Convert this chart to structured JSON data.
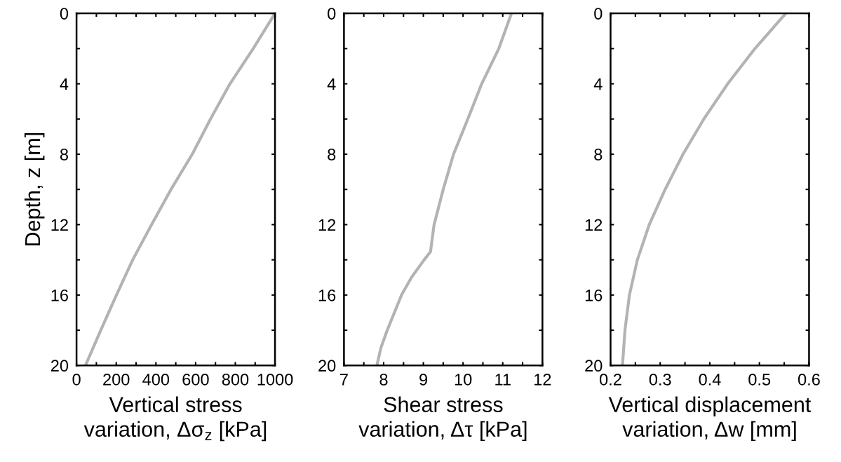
{
  "chart_data": [
    {
      "type": "line",
      "xlabel": "Vertical stress\nvariation, Δσ$_{z}$ [kPa]",
      "ylabel": "Depth, z [m]",
      "xlim": [
        0,
        1000
      ],
      "ylim": [
        20,
        0
      ],
      "xticks": [
        0,
        {
          "value": 100,
          "label": null
        },
        200,
        {
          "value": 300,
          "label": null
        },
        400,
        {
          "value": 500,
          "label": null
        },
        600,
        {
          "value": 700,
          "label": null
        },
        800,
        {
          "value": 900,
          "label": null
        },
        1000
      ],
      "yticks": [
        0,
        {
          "value": 2,
          "label": null
        },
        4,
        {
          "value": 6,
          "label": null
        },
        8,
        {
          "value": 10,
          "label": null
        },
        12,
        {
          "value": 14,
          "label": null
        },
        16,
        {
          "value": 18,
          "label": null
        },
        20
      ],
      "grid": false,
      "marker": "none",
      "line_style": "solid",
      "series": [
        {
          "color": "#b3b3b3",
          "x": [
            1000,
            890,
            773,
            675,
            583,
            476,
            378,
            283,
            201,
            122,
            45
          ],
          "values": [
            0,
            2,
            4,
            6,
            8,
            10,
            12,
            14,
            16,
            18,
            20
          ]
        }
      ]
    },
    {
      "type": "line",
      "xlabel": "Shear stress\nvariation, Δτ [kPa]",
      "xlim": [
        7,
        12
      ],
      "ylim": [
        20,
        0
      ],
      "xticks": [
        7,
        {
          "value": 7.5,
          "label": null
        },
        8,
        {
          "value": 8.5,
          "label": null
        },
        9,
        {
          "value": 9.5,
          "label": null
        },
        10,
        {
          "value": 10.5,
          "label": null
        },
        11,
        {
          "value": 11.5,
          "label": null
        },
        12
      ],
      "yticks": [
        0,
        {
          "value": 2,
          "label": null
        },
        4,
        {
          "value": 6,
          "label": null
        },
        8,
        {
          "value": 10,
          "label": null
        },
        12,
        {
          "value": 14,
          "label": null
        },
        16,
        {
          "value": 18,
          "label": null
        },
        20
      ],
      "grid": false,
      "marker": "none",
      "line_style": "solid",
      "series": [
        {
          "color": "#b3b3b3",
          "x": [
            11.22,
            10.9,
            10.47,
            10.12,
            9.76,
            9.5,
            9.27,
            9.18,
            9.02,
            8.7,
            8.45,
            8.09,
            7.93,
            7.83
          ],
          "values": [
            0,
            2,
            4,
            6,
            8,
            10,
            12,
            13.54,
            14,
            15,
            16,
            18,
            19,
            20
          ]
        }
      ]
    },
    {
      "type": "line",
      "xlabel": "Vertical displacement\nvariation, Δw [mm]",
      "xlim": [
        0.2,
        0.6
      ],
      "ylim": [
        20,
        0
      ],
      "xticks": [
        0.2,
        {
          "value": 0.25,
          "label": null
        },
        0.3,
        {
          "value": 0.35,
          "label": null
        },
        0.4,
        {
          "value": 0.45,
          "label": null
        },
        0.5,
        {
          "value": 0.55,
          "label": null
        },
        0.6
      ],
      "yticks": [
        0,
        {
          "value": 2,
          "label": null
        },
        4,
        {
          "value": 6,
          "label": null
        },
        8,
        {
          "value": 10,
          "label": null
        },
        12,
        {
          "value": 14,
          "label": null
        },
        16,
        {
          "value": 18,
          "label": null
        },
        20
      ],
      "grid": false,
      "marker": "none",
      "line_style": "solid",
      "series": [
        {
          "color": "#b3b3b3",
          "x": [
            0.553,
            0.491,
            0.436,
            0.388,
            0.346,
            0.31,
            0.278,
            0.254,
            0.238,
            0.229,
            0.224
          ],
          "values": [
            0,
            2,
            4,
            6,
            8,
            10,
            12,
            14,
            16,
            18,
            20
          ]
        }
      ]
    }
  ]
}
